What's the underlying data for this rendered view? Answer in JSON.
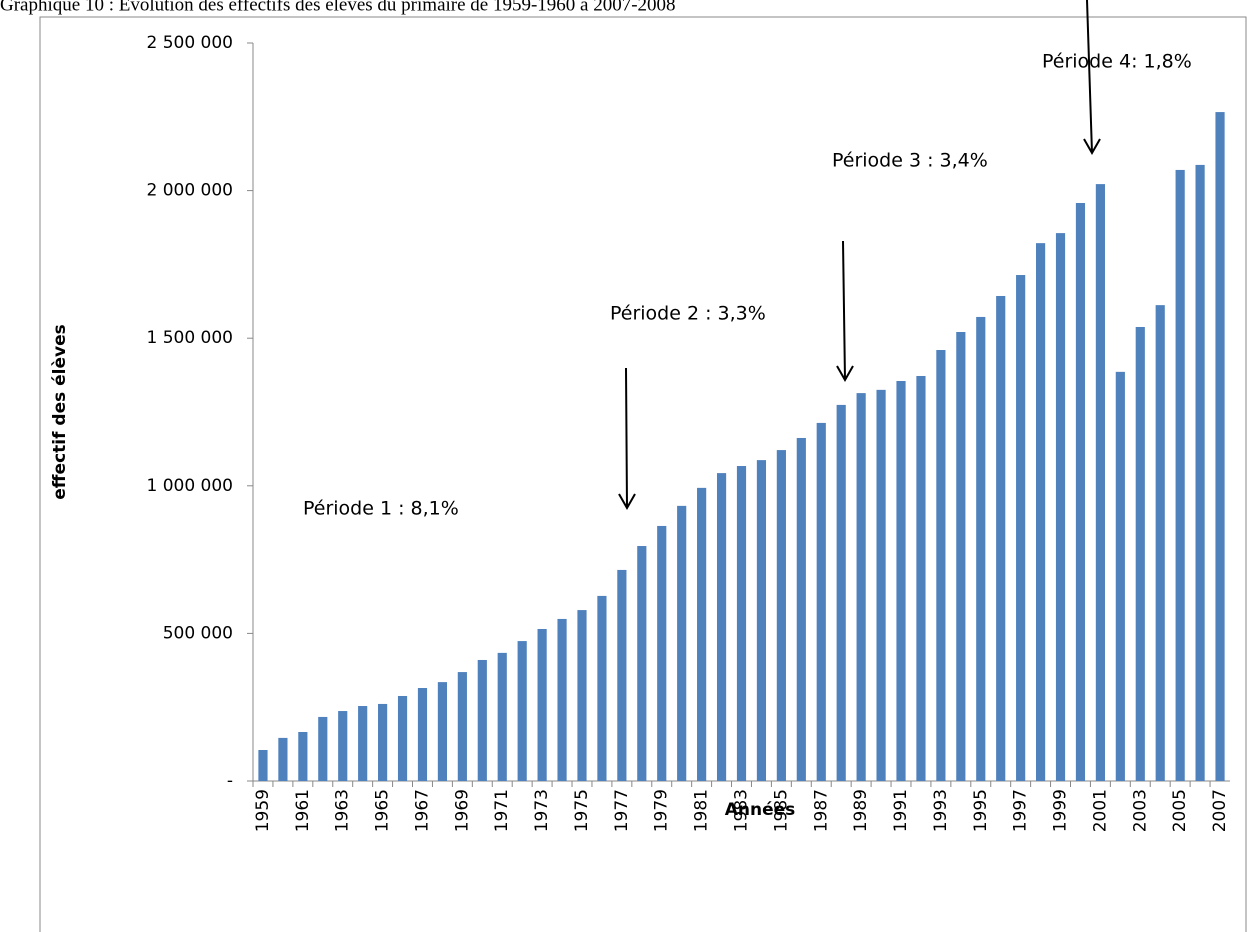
{
  "chart_data": {
    "type": "bar",
    "title": "Graphique 10 : Évolution des effectifs des élèves du primaire de 1959-1960 à 2007-2008",
    "x_label": "Années",
    "y_label": "effectif des élèves",
    "annotations": [
      "Période 1 : 8,1%",
      "Période 2 : 3,3%",
      "Période 3 : 3,4%",
      "Période 4:  1,8%"
    ],
    "categories": [
      "1959",
      null,
      "1961",
      null,
      "1963",
      null,
      "1965",
      null,
      "1967",
      null,
      "1969",
      null,
      "1971",
      null,
      "1973",
      null,
      "1975",
      null,
      "1977",
      null,
      "1979",
      null,
      "1981",
      null,
      "1983",
      null,
      "1985",
      null,
      "1987",
      null,
      "1989",
      null,
      "1991",
      null,
      "1993",
      null,
      "1995",
      null,
      "1997",
      null,
      "1999",
      null,
      "2001",
      null,
      "2003",
      null,
      "2005",
      null,
      "2007"
    ],
    "values": [
      105000,
      146000,
      166000,
      217000,
      237000,
      254000,
      261000,
      288000,
      315000,
      335000,
      369000,
      410000,
      434000,
      474000,
      515000,
      549000,
      579000,
      627000,
      715000,
      796000,
      864000,
      932000,
      993000,
      1043000,
      1067000,
      1087000,
      1121000,
      1162000,
      1213000,
      1274000,
      1314000,
      1325000,
      1355000,
      1372000,
      1460000,
      1521000,
      1572000,
      1643000,
      1714000,
      1822000,
      1856000,
      1958000,
      2022000,
      1386000,
      1538000,
      1612000,
      2070000,
      2087000,
      2266000
    ],
    "color": "#4f81bd",
    "ylim": [
      0,
      2500000
    ],
    "yticks": [
      {
        "value": 0,
        "label": "-"
      },
      {
        "value": 500000,
        "label": "500 000"
      },
      {
        "value": 1000000,
        "label": "1 000 000"
      },
      {
        "value": 1500000,
        "label": "1 500 000"
      },
      {
        "value": 2000000,
        "label": "2 000 000"
      },
      {
        "value": 2500000,
        "label": "2 500 000"
      }
    ],
    "grid": false
  }
}
